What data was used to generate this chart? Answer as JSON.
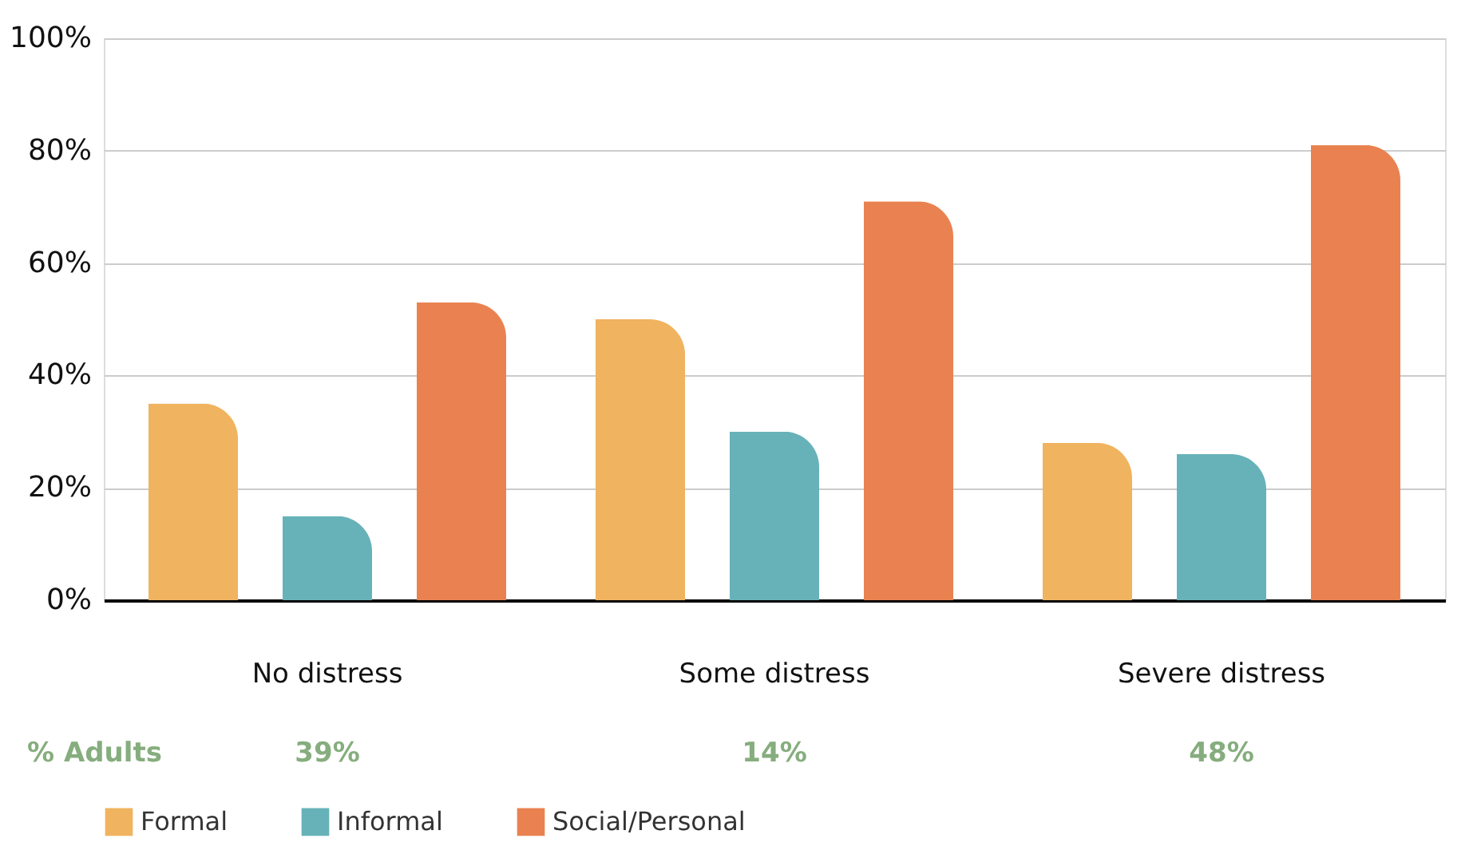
{
  "chart_data": {
    "type": "bar",
    "categories": [
      "No distress",
      "Some distress",
      "Severe distress"
    ],
    "series": [
      {
        "name": "Formal",
        "color": "#f0b35f",
        "values": [
          35,
          50,
          28
        ]
      },
      {
        "name": "Informal",
        "color": "#67b2b8",
        "values": [
          15,
          30,
          26
        ]
      },
      {
        "name": "Social/Personal",
        "color": "#e98250",
        "values": [
          53,
          71,
          81
        ]
      }
    ],
    "ylim": [
      0,
      100
    ],
    "yticks": [
      {
        "value": 0,
        "label": "0%"
      },
      {
        "value": 20,
        "label": "20%"
      },
      {
        "value": 40,
        "label": "40%"
      },
      {
        "value": 60,
        "label": "60%"
      },
      {
        "value": 80,
        "label": "80%"
      },
      {
        "value": 100,
        "label": "100%"
      }
    ],
    "grid": "y",
    "legend": "bottom",
    "annotations": [
      "% Adults",
      "39%",
      "14%",
      "48%"
    ]
  }
}
